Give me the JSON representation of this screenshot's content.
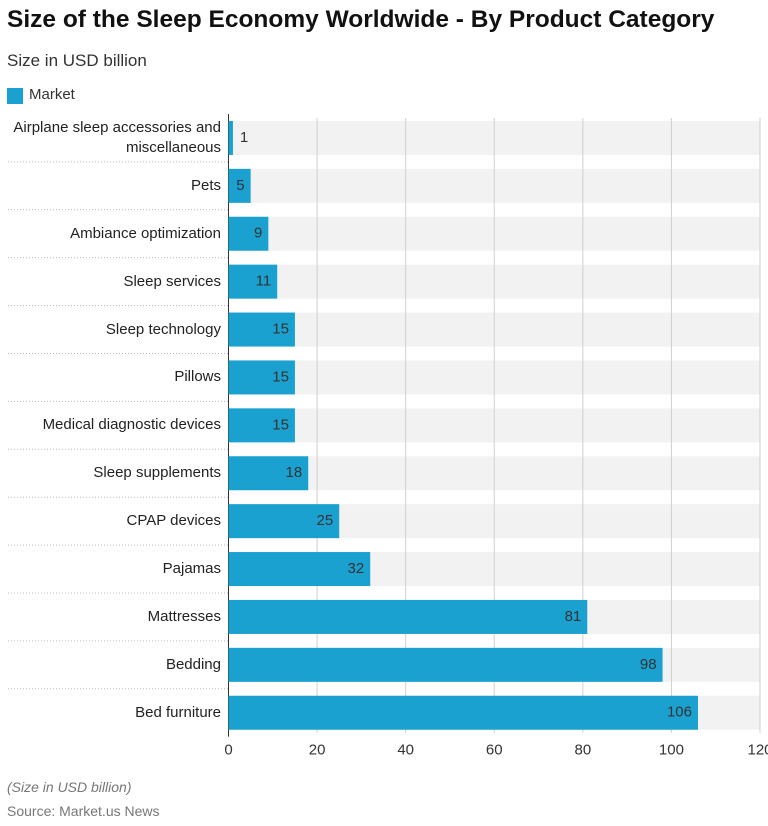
{
  "chart_data": {
    "type": "bar",
    "orientation": "horizontal",
    "title": "Size of the Sleep Economy Worldwide - By Product Category",
    "subtitle": "Size in USD billion",
    "categories": [
      "Airplane sleep accessories and miscellaneous",
      "Pets",
      "Ambiance optimization",
      "Sleep services",
      "Sleep technology",
      "Pillows",
      "Medical diagnostic devices",
      "Sleep supplements",
      "CPAP devices",
      "Pajamas",
      "Mattresses",
      "Bedding",
      "Bed furniture"
    ],
    "series": [
      {
        "name": "Market",
        "color": "#1ba1d0",
        "values": [
          1,
          5,
          9,
          11,
          15,
          15,
          15,
          18,
          25,
          32,
          81,
          98,
          106
        ]
      }
    ],
    "xlim": [
      0,
      120
    ],
    "xticks": [
      0,
      20,
      40,
      60,
      80,
      100,
      120
    ],
    "grid": true,
    "legend": "top-left",
    "note": "(Size in USD billion)",
    "source": "Source: Market.us News"
  }
}
